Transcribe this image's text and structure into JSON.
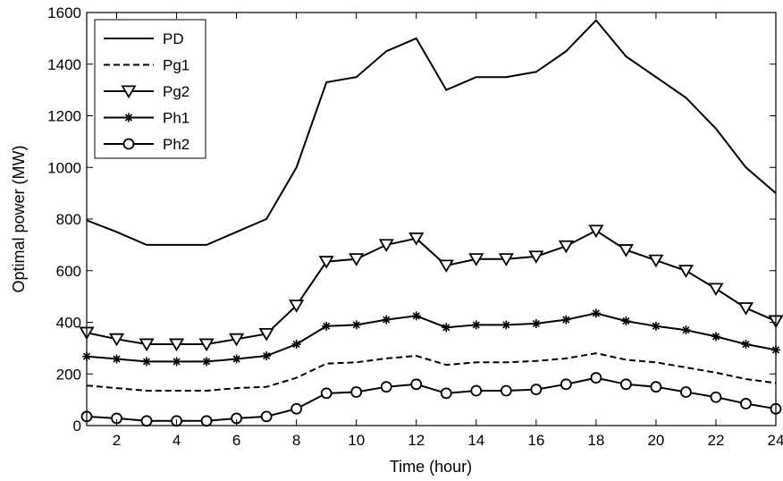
{
  "chart_data": {
    "type": "line",
    "title": "",
    "xlabel": "Time (hour)",
    "ylabel": "Optimal power (MW)",
    "xlim": [
      1,
      24
    ],
    "ylim": [
      0,
      1600
    ],
    "xticks": [
      2,
      4,
      6,
      8,
      10,
      12,
      14,
      16,
      18,
      20,
      22,
      24
    ],
    "yticks": [
      0,
      200,
      400,
      600,
      800,
      1000,
      1200,
      1400,
      1600
    ],
    "grid": false,
    "legend_position": "top-left",
    "x": [
      1,
      2,
      3,
      4,
      5,
      6,
      7,
      8,
      9,
      10,
      11,
      12,
      13,
      14,
      15,
      16,
      17,
      18,
      19,
      20,
      21,
      22,
      23,
      24
    ],
    "series": [
      {
        "name": "PD",
        "style": "solid",
        "marker": "none",
        "color": "#000000",
        "values": [
          795,
          750,
          700,
          700,
          700,
          750,
          800,
          1000,
          1330,
          1350,
          1450,
          1500,
          1300,
          1350,
          1350,
          1370,
          1450,
          1570,
          1430,
          1350,
          1270,
          1150,
          1000,
          900
        ]
      },
      {
        "name": "Pg1",
        "style": "dashed",
        "marker": "none",
        "color": "#000000",
        "values": [
          155,
          145,
          135,
          135,
          135,
          145,
          150,
          185,
          240,
          245,
          260,
          270,
          235,
          245,
          245,
          250,
          260,
          280,
          255,
          245,
          225,
          205,
          180,
          165
        ]
      },
      {
        "name": "Pg2",
        "style": "solid",
        "marker": "triangle-down",
        "color": "#000000",
        "values": [
          360,
          335,
          315,
          315,
          315,
          335,
          355,
          465,
          635,
          645,
          700,
          725,
          620,
          645,
          645,
          655,
          695,
          755,
          680,
          640,
          600,
          530,
          455,
          405
        ]
      },
      {
        "name": "Ph1",
        "style": "solid",
        "marker": "star",
        "color": "#000000",
        "values": [
          268,
          258,
          248,
          248,
          248,
          258,
          270,
          315,
          385,
          390,
          410,
          425,
          380,
          390,
          390,
          395,
          410,
          435,
          405,
          385,
          370,
          345,
          315,
          293
        ]
      },
      {
        "name": "Ph2",
        "style": "solid",
        "marker": "circle",
        "color": "#000000",
        "values": [
          35,
          28,
          18,
          18,
          18,
          28,
          35,
          65,
          125,
          130,
          150,
          160,
          125,
          135,
          135,
          140,
          160,
          185,
          160,
          150,
          130,
          110,
          85,
          65
        ]
      }
    ]
  }
}
